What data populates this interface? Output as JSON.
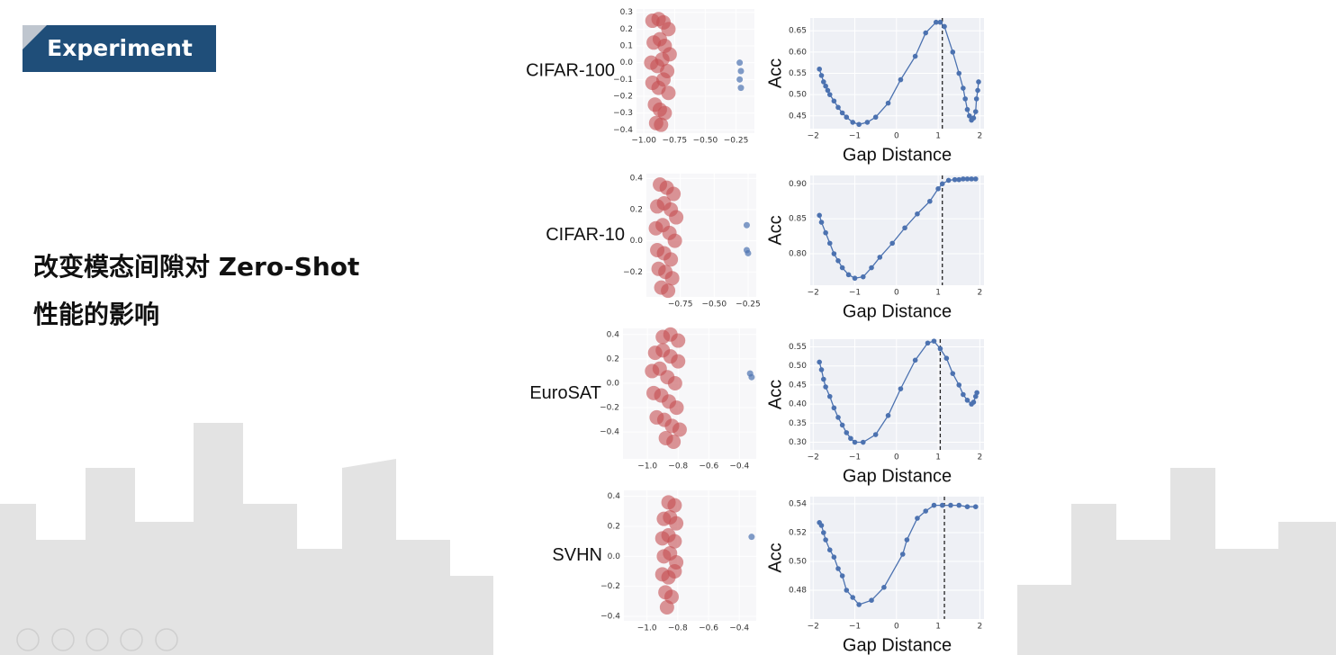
{
  "slide": {
    "badge": "Experiment",
    "heading": [
      "改变模态间隙对 Zero-Shot",
      "性能的影响"
    ]
  },
  "chart_data": [
    {
      "type": "scatter",
      "title": "CIFAR-100",
      "xlim": [
        -1.06,
        -0.1
      ],
      "ylim": [
        -0.42,
        0.32
      ],
      "xticks": [
        {
          "value": -1.0,
          "label": "−1.00"
        },
        {
          "value": -0.75,
          "label": "−0.75"
        },
        {
          "value": -0.5,
          "label": "−0.50"
        },
        {
          "value": -0.25,
          "label": "−0.25"
        }
      ],
      "yticks": [
        0.3,
        0.2,
        0.1,
        {
          "value": 0,
          "label": "0.0"
        },
        {
          "value": -0.1,
          "label": "−0.1"
        },
        {
          "value": -0.2,
          "label": "−0.2"
        },
        {
          "value": -0.3,
          "label": "−0.3"
        },
        {
          "value": -0.4,
          "label": "−0.4"
        }
      ],
      "series": [
        {
          "color": "#c44e52",
          "x": [
            -0.93,
            -0.88,
            -0.84,
            -0.8,
            -0.92,
            -0.87,
            -0.83,
            -0.79,
            -0.94,
            -0.89,
            -0.85,
            -0.81,
            -0.93,
            -0.88,
            -0.84,
            -0.8,
            -0.91,
            -0.87,
            -0.83,
            -0.9,
            -0.86
          ],
          "y": [
            0.25,
            0.26,
            0.24,
            0.2,
            0.12,
            0.14,
            0.1,
            0.05,
            0.0,
            -0.02,
            0.02,
            -0.05,
            -0.12,
            -0.15,
            -0.1,
            -0.18,
            -0.25,
            -0.28,
            -0.3,
            -0.36,
            -0.37
          ]
        },
        {
          "color": "#4c72b0",
          "x": [
            -0.22,
            -0.21,
            -0.22,
            -0.21
          ],
          "y": [
            0.0,
            -0.05,
            -0.1,
            -0.15
          ]
        }
      ]
    },
    {
      "type": "line",
      "x": [
        -1.85,
        -1.8,
        -1.75,
        -1.7,
        -1.65,
        -1.6,
        -1.5,
        -1.4,
        -1.3,
        -1.2,
        -1.05,
        -0.9,
        -0.7,
        -0.5,
        -0.2,
        0.1,
        0.45,
        0.7,
        0.95,
        1.05,
        1.15,
        1.35,
        1.5,
        1.6,
        1.65,
        1.7,
        1.75,
        1.8,
        1.85,
        1.9,
        1.92,
        1.95,
        1.97
      ],
      "series": [
        {
          "color": "#4c72b0",
          "values": [
            0.56,
            0.545,
            0.53,
            0.52,
            0.51,
            0.5,
            0.485,
            0.47,
            0.457,
            0.447,
            0.435,
            0.43,
            0.435,
            0.447,
            0.48,
            0.535,
            0.59,
            0.645,
            0.67,
            0.67,
            0.66,
            0.6,
            0.55,
            0.515,
            0.49,
            0.465,
            0.45,
            0.44,
            0.445,
            0.46,
            0.49,
            0.51,
            0.53
          ]
        }
      ],
      "vline": 1.1,
      "xlabel": "Gap Distance",
      "ylabel": "Acc",
      "xlim": [
        -2.07,
        2.1
      ],
      "ylim": [
        0.42,
        0.68
      ],
      "xticks": [
        {
          "value": -2,
          "label": "−2"
        },
        {
          "value": -1,
          "label": "−1"
        },
        0,
        1,
        2
      ],
      "yticks": [
        0.45,
        {
          "value": 0.5,
          "label": "0.50"
        },
        0.55,
        {
          "value": 0.6,
          "label": "0.60"
        },
        0.65
      ]
    },
    {
      "type": "scatter",
      "title": "CIFAR-10",
      "xlim": [
        -1.0,
        -0.19
      ],
      "ylim": [
        -0.36,
        0.43
      ],
      "xticks": [
        {
          "value": -0.75,
          "label": "−0.75"
        },
        {
          "value": -0.5,
          "label": "−0.50"
        },
        {
          "value": -0.25,
          "label": "−0.25"
        }
      ],
      "yticks": [
        0.4,
        0.2,
        {
          "value": 0,
          "label": "0.0"
        },
        {
          "value": -0.2,
          "label": "−0.2"
        }
      ],
      "series": [
        {
          "color": "#c44e52",
          "x": [
            -0.9,
            -0.85,
            -0.8,
            -0.92,
            -0.87,
            -0.82,
            -0.78,
            -0.93,
            -0.88,
            -0.83,
            -0.79,
            -0.92,
            -0.87,
            -0.82,
            -0.91,
            -0.86,
            -0.81,
            -0.89,
            -0.84
          ],
          "y": [
            0.36,
            0.34,
            0.3,
            0.22,
            0.24,
            0.2,
            0.15,
            0.08,
            0.1,
            0.05,
            0.0,
            -0.06,
            -0.08,
            -0.12,
            -0.18,
            -0.2,
            -0.24,
            -0.3,
            -0.32
          ]
        },
        {
          "color": "#4c72b0",
          "x": [
            -0.26,
            -0.26,
            -0.25
          ],
          "y": [
            0.1,
            -0.06,
            -0.08
          ]
        }
      ]
    },
    {
      "type": "line",
      "x": [
        -1.85,
        -1.8,
        -1.7,
        -1.6,
        -1.5,
        -1.4,
        -1.3,
        -1.15,
        -1.0,
        -0.8,
        -0.6,
        -0.4,
        -0.1,
        0.2,
        0.5,
        0.8,
        1.0,
        1.1,
        1.25,
        1.4,
        1.5,
        1.6,
        1.7,
        1.8,
        1.9
      ],
      "series": [
        {
          "color": "#4c72b0",
          "values": [
            0.855,
            0.845,
            0.83,
            0.815,
            0.8,
            0.79,
            0.78,
            0.77,
            0.765,
            0.767,
            0.78,
            0.795,
            0.815,
            0.837,
            0.857,
            0.875,
            0.893,
            0.9,
            0.905,
            0.906,
            0.906,
            0.907,
            0.907,
            0.907,
            0.907
          ]
        }
      ],
      "vline": 1.1,
      "xlabel": "Gap Distance",
      "ylabel": "Acc",
      "xlim": [
        -2.07,
        2.1
      ],
      "ylim": [
        0.755,
        0.912
      ],
      "xticks": [
        {
          "value": -2,
          "label": "−2"
        },
        {
          "value": -1,
          "label": "−1"
        },
        0,
        1,
        2
      ],
      "yticks": [
        {
          "value": 0.8,
          "label": "0.80"
        },
        0.85,
        {
          "value": 0.9,
          "label": "0.90"
        }
      ]
    },
    {
      "type": "scatter",
      "title": "EuroSAT",
      "xlim": [
        -1.16,
        -0.29
      ],
      "ylim": [
        -0.62,
        0.45
      ],
      "xticks": [
        {
          "value": -1.0,
          "label": "−1.0"
        },
        {
          "value": -0.8,
          "label": "−0.8"
        },
        {
          "value": -0.6,
          "label": "−0.6"
        },
        {
          "value": -0.4,
          "label": "−0.4"
        }
      ],
      "yticks": [
        0.4,
        0.2,
        {
          "value": 0,
          "label": "0.0"
        },
        {
          "value": -0.2,
          "label": "−0.2"
        },
        {
          "value": -0.4,
          "label": "−0.4"
        }
      ],
      "series": [
        {
          "color": "#c44e52",
          "x": [
            -0.9,
            -0.85,
            -0.8,
            -0.95,
            -0.9,
            -0.85,
            -0.8,
            -0.97,
            -0.92,
            -0.87,
            -0.82,
            -0.96,
            -0.91,
            -0.86,
            -0.81,
            -0.94,
            -0.89,
            -0.84,
            -0.79,
            -0.88,
            -0.83
          ],
          "y": [
            0.38,
            0.4,
            0.35,
            0.25,
            0.27,
            0.22,
            0.18,
            0.1,
            0.12,
            0.05,
            0.0,
            -0.08,
            -0.1,
            -0.15,
            -0.2,
            -0.28,
            -0.3,
            -0.35,
            -0.38,
            -0.45,
            -0.48
          ]
        },
        {
          "color": "#4c72b0",
          "x": [
            -0.33,
            -0.32
          ],
          "y": [
            0.08,
            0.05
          ]
        }
      ]
    },
    {
      "type": "line",
      "x": [
        -1.85,
        -1.8,
        -1.75,
        -1.7,
        -1.6,
        -1.5,
        -1.4,
        -1.3,
        -1.2,
        -1.1,
        -1.0,
        -0.8,
        -0.5,
        -0.2,
        0.1,
        0.45,
        0.75,
        0.9,
        1.05,
        1.2,
        1.35,
        1.5,
        1.6,
        1.7,
        1.8,
        1.85,
        1.9,
        1.93
      ],
      "series": [
        {
          "color": "#4c72b0",
          "values": [
            0.51,
            0.49,
            0.465,
            0.445,
            0.42,
            0.39,
            0.365,
            0.345,
            0.325,
            0.31,
            0.3,
            0.3,
            0.32,
            0.37,
            0.44,
            0.515,
            0.56,
            0.565,
            0.545,
            0.52,
            0.48,
            0.45,
            0.425,
            0.41,
            0.4,
            0.405,
            0.42,
            0.43
          ]
        }
      ],
      "vline": 1.05,
      "xlabel": "Gap Distance",
      "ylabel": "Acc",
      "xlim": [
        -2.07,
        2.1
      ],
      "ylim": [
        0.28,
        0.57
      ],
      "xticks": [
        {
          "value": -2,
          "label": "−2"
        },
        {
          "value": -1,
          "label": "−1"
        },
        0,
        1,
        2
      ],
      "yticks": [
        {
          "value": 0.3,
          "label": "0.30"
        },
        0.35,
        {
          "value": 0.4,
          "label": "0.40"
        },
        0.45,
        {
          "value": 0.5,
          "label": "0.50"
        },
        0.55
      ]
    },
    {
      "type": "scatter",
      "title": "SVHN",
      "xlim": [
        -1.15,
        -0.29
      ],
      "ylim": [
        -0.43,
        0.44
      ],
      "xticks": [
        {
          "value": -1.0,
          "label": "−1.0"
        },
        {
          "value": -0.8,
          "label": "−0.8"
        },
        {
          "value": -0.6,
          "label": "−0.6"
        },
        {
          "value": -0.4,
          "label": "−0.4"
        }
      ],
      "yticks": [
        0.4,
        0.2,
        {
          "value": 0,
          "label": "0.0"
        },
        {
          "value": -0.2,
          "label": "−0.2"
        },
        {
          "value": -0.4,
          "label": "−0.4"
        }
      ],
      "series": [
        {
          "color": "#c44e52",
          "x": [
            -0.86,
            -0.82,
            -0.89,
            -0.85,
            -0.81,
            -0.9,
            -0.86,
            -0.82,
            -0.89,
            -0.85,
            -0.81,
            -0.9,
            -0.86,
            -0.82,
            -0.88,
            -0.84,
            -0.87
          ],
          "y": [
            0.36,
            0.34,
            0.25,
            0.26,
            0.22,
            0.12,
            0.14,
            0.1,
            0.0,
            0.02,
            -0.04,
            -0.12,
            -0.14,
            -0.1,
            -0.24,
            -0.27,
            -0.34
          ]
        },
        {
          "color": "#4c72b0",
          "x": [
            -0.32
          ],
          "y": [
            0.13
          ]
        }
      ]
    },
    {
      "type": "line",
      "x": [
        -1.85,
        -1.8,
        -1.75,
        -1.7,
        -1.6,
        -1.5,
        -1.4,
        -1.3,
        -1.2,
        -1.05,
        -0.9,
        -0.6,
        -0.3,
        0.15,
        0.25,
        0.5,
        0.7,
        0.9,
        1.1,
        1.3,
        1.5,
        1.7,
        1.9
      ],
      "series": [
        {
          "color": "#4c72b0",
          "values": [
            0.527,
            0.525,
            0.52,
            0.515,
            0.508,
            0.503,
            0.495,
            0.49,
            0.48,
            0.475,
            0.47,
            0.473,
            0.482,
            0.505,
            0.515,
            0.53,
            0.535,
            0.539,
            0.539,
            0.539,
            0.539,
            0.538,
            0.538
          ]
        }
      ],
      "vline": 1.15,
      "xlabel": "Gap Distance",
      "ylabel": "Acc",
      "xlim": [
        -2.07,
        2.1
      ],
      "ylim": [
        0.46,
        0.545
      ],
      "xticks": [
        {
          "value": -2,
          "label": "−2"
        },
        {
          "value": -1,
          "label": "−1"
        },
        0,
        1,
        2
      ],
      "yticks": [
        0.48,
        {
          "value": 0.5,
          "label": "0.50"
        },
        0.52,
        0.54
      ]
    }
  ]
}
